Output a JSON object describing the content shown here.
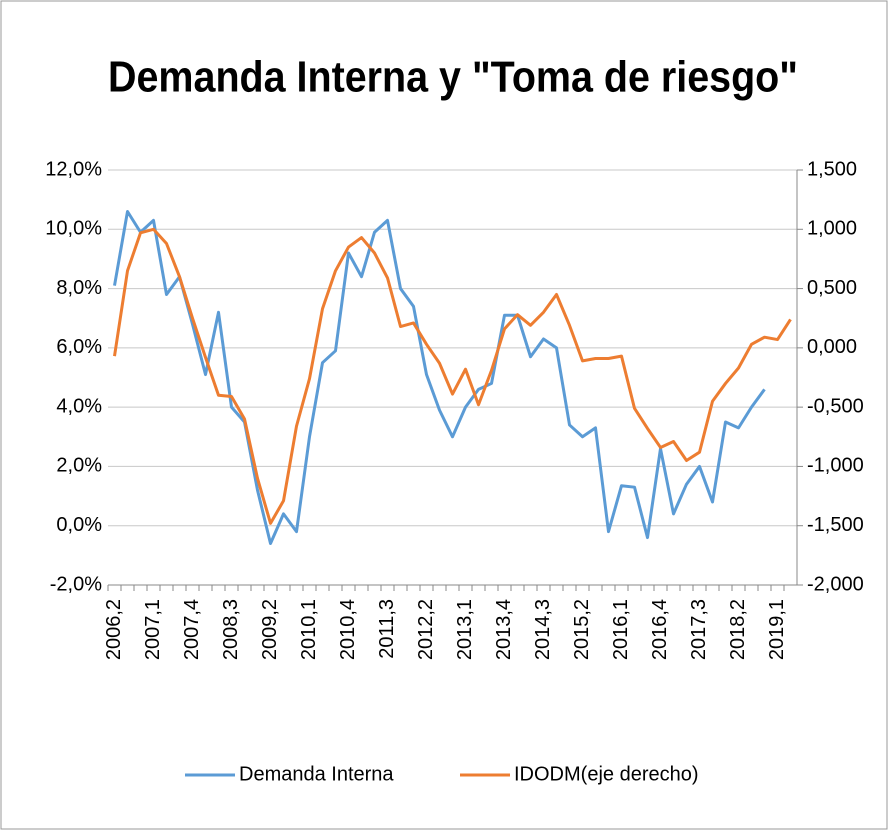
{
  "chart_data": {
    "type": "line",
    "title": "Demanda Interna y \"Toma de riesgo\"",
    "categories": [
      "2006,2",
      null,
      null,
      "2007,1",
      null,
      null,
      "2007,4",
      null,
      null,
      "2008,3",
      null,
      null,
      "2009,2",
      null,
      null,
      "2010,1",
      null,
      null,
      "2010,4",
      null,
      null,
      "2011,3",
      null,
      null,
      "2012,2",
      null,
      null,
      "2013,1",
      null,
      null,
      "2013,4",
      null,
      null,
      "2014,3",
      null,
      null,
      "2015,2",
      null,
      null,
      "2016,1",
      null,
      null,
      "2016,4",
      null,
      null,
      "2017,3",
      null,
      null,
      "2018,2",
      null,
      null,
      "2019,1",
      null
    ],
    "series": [
      {
        "name": "Demanda Interna",
        "color": "#5b9bd5",
        "axis": "y",
        "values": [
          8.1,
          10.6,
          9.9,
          10.3,
          7.8,
          8.4,
          6.8,
          5.1,
          7.2,
          4.0,
          3.5,
          1.2,
          -0.6,
          0.4,
          -0.2,
          3.0,
          5.5,
          5.9,
          9.2,
          8.4,
          9.9,
          10.3,
          8.0,
          7.4,
          5.1,
          3.9,
          3.0,
          4.0,
          4.6,
          4.8,
          7.1,
          7.1,
          5.7,
          6.3,
          6.0,
          3.4,
          3.0,
          3.3,
          -0.2,
          1.35,
          1.3,
          -0.4,
          2.6,
          0.4,
          1.4,
          2.0,
          0.8,
          3.5,
          3.3,
          4.0,
          4.6,
          null,
          null
        ]
      },
      {
        "name": "IDODM(eje derecho)",
        "color": "#ed7d31",
        "axis": "y2",
        "values": [
          -0.07,
          0.65,
          0.97,
          1.0,
          0.88,
          0.6,
          0.25,
          -0.08,
          -0.4,
          -0.41,
          -0.6,
          -1.1,
          -1.48,
          -1.29,
          -0.66,
          -0.26,
          0.33,
          0.65,
          0.85,
          0.93,
          0.8,
          0.59,
          0.18,
          0.21,
          0.03,
          -0.13,
          -0.39,
          -0.18,
          -0.48,
          -0.19,
          0.16,
          0.28,
          0.19,
          0.3,
          0.45,
          0.19,
          -0.11,
          -0.09,
          -0.09,
          -0.07,
          -0.51,
          -0.68,
          -0.84,
          -0.79,
          -0.95,
          -0.88,
          -0.45,
          -0.3,
          -0.17,
          0.03,
          0.09,
          0.07,
          0.24
        ]
      }
    ],
    "ylim": [
      -2,
      12
    ],
    "yticks": [
      {
        "value": -2,
        "label": "-2,0%"
      },
      {
        "value": 0,
        "label": "0,0%"
      },
      {
        "value": 2,
        "label": "2,0%"
      },
      {
        "value": 4,
        "label": "4,0%"
      },
      {
        "value": 6,
        "label": "6,0%"
      },
      {
        "value": 8,
        "label": "8,0%"
      },
      {
        "value": 10,
        "label": "10,0%"
      },
      {
        "value": 12,
        "label": "12,0%"
      }
    ],
    "y2lim": [
      -2,
      1.5
    ],
    "y2ticks": [
      {
        "value": -2,
        "label": "-2,000"
      },
      {
        "value": -1.5,
        "label": "-1,500"
      },
      {
        "value": -1,
        "label": "-1,000"
      },
      {
        "value": -0.5,
        "label": "-0,500"
      },
      {
        "value": 0,
        "label": "0,000"
      },
      {
        "value": 0.5,
        "label": "0,500"
      },
      {
        "value": 1,
        "label": "1,000"
      },
      {
        "value": 1.5,
        "label": "1,500"
      }
    ],
    "grid": true,
    "legend": "bottom"
  }
}
